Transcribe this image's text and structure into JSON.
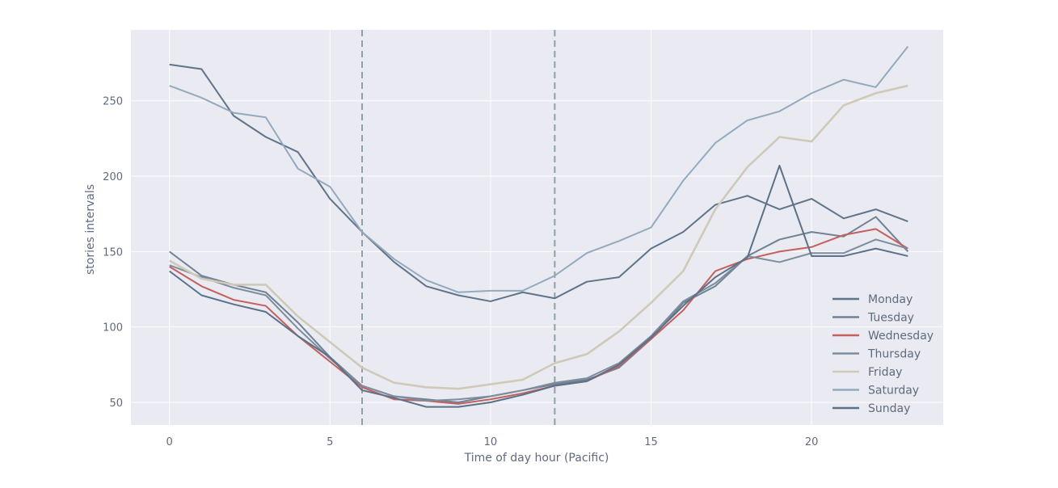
{
  "chart_data": {
    "type": "line",
    "title": "",
    "xlabel": "Time of day hour (Pacific)",
    "ylabel": "stories intervals",
    "xlim": [
      -1.2,
      24.1
    ],
    "ylim": [
      35,
      297
    ],
    "xticks": [
      0,
      5,
      10,
      15,
      20
    ],
    "yticks": [
      50,
      100,
      150,
      200,
      250
    ],
    "grid": true,
    "legend_position": "lower-right",
    "vlines": [
      6,
      12
    ],
    "vline_style": "dashed",
    "x": [
      0,
      1,
      2,
      3,
      4,
      5,
      6,
      7,
      8,
      9,
      10,
      11,
      12,
      13,
      14,
      15,
      16,
      17,
      18,
      19,
      20,
      21,
      22,
      23
    ],
    "series": [
      {
        "name": "Monday",
        "color": "#5e7489",
        "values": [
          274,
          271,
          240,
          226,
          216,
          185,
          163,
          143,
          127,
          121,
          117,
          123,
          119,
          130,
          133,
          152,
          163,
          181,
          187,
          178,
          185,
          172,
          178,
          170
        ]
      },
      {
        "name": "Tuesday",
        "color": "#6f8294",
        "values": [
          150,
          134,
          128,
          123,
          103,
          80,
          61,
          54,
          52,
          50,
          54,
          58,
          62,
          65,
          73,
          92,
          116,
          127,
          147,
          158,
          163,
          160,
          173,
          150
        ]
      },
      {
        "name": "Wednesday",
        "color": "#c4605e",
        "values": [
          140,
          127,
          118,
          114,
          94,
          77,
          60,
          52,
          51,
          49,
          52,
          56,
          61,
          64,
          74,
          92,
          111,
          137,
          145,
          150,
          153,
          161,
          165,
          152
        ]
      },
      {
        "name": "Thursday",
        "color": "#7d8d9c",
        "values": [
          141,
          133,
          126,
          121,
          99,
          79,
          61,
          54,
          51,
          52,
          54,
          58,
          63,
          66,
          76,
          94,
          117,
          129,
          147,
          143,
          149,
          149,
          158,
          152
        ]
      },
      {
        "name": "Friday",
        "color": "#cfcab8",
        "values": [
          144,
          132,
          128,
          128,
          107,
          90,
          73,
          63,
          60,
          59,
          62,
          65,
          76,
          82,
          97,
          116,
          137,
          178,
          206,
          226,
          223,
          247,
          255,
          260
        ]
      },
      {
        "name": "Saturday",
        "color": "#93aabd",
        "values": [
          260,
          252,
          242,
          239,
          205,
          193,
          163,
          145,
          131,
          123,
          124,
          124,
          134,
          149,
          157,
          166,
          197,
          222,
          237,
          243,
          255,
          264,
          259,
          286
        ]
      },
      {
        "name": "Sunday",
        "color": "#5a7189",
        "values": [
          137,
          121,
          115,
          110,
          94,
          80,
          58,
          53,
          47,
          47,
          50,
          55,
          61,
          64,
          75,
          93,
          114,
          133,
          146,
          207,
          147,
          147,
          152,
          147
        ]
      }
    ]
  }
}
